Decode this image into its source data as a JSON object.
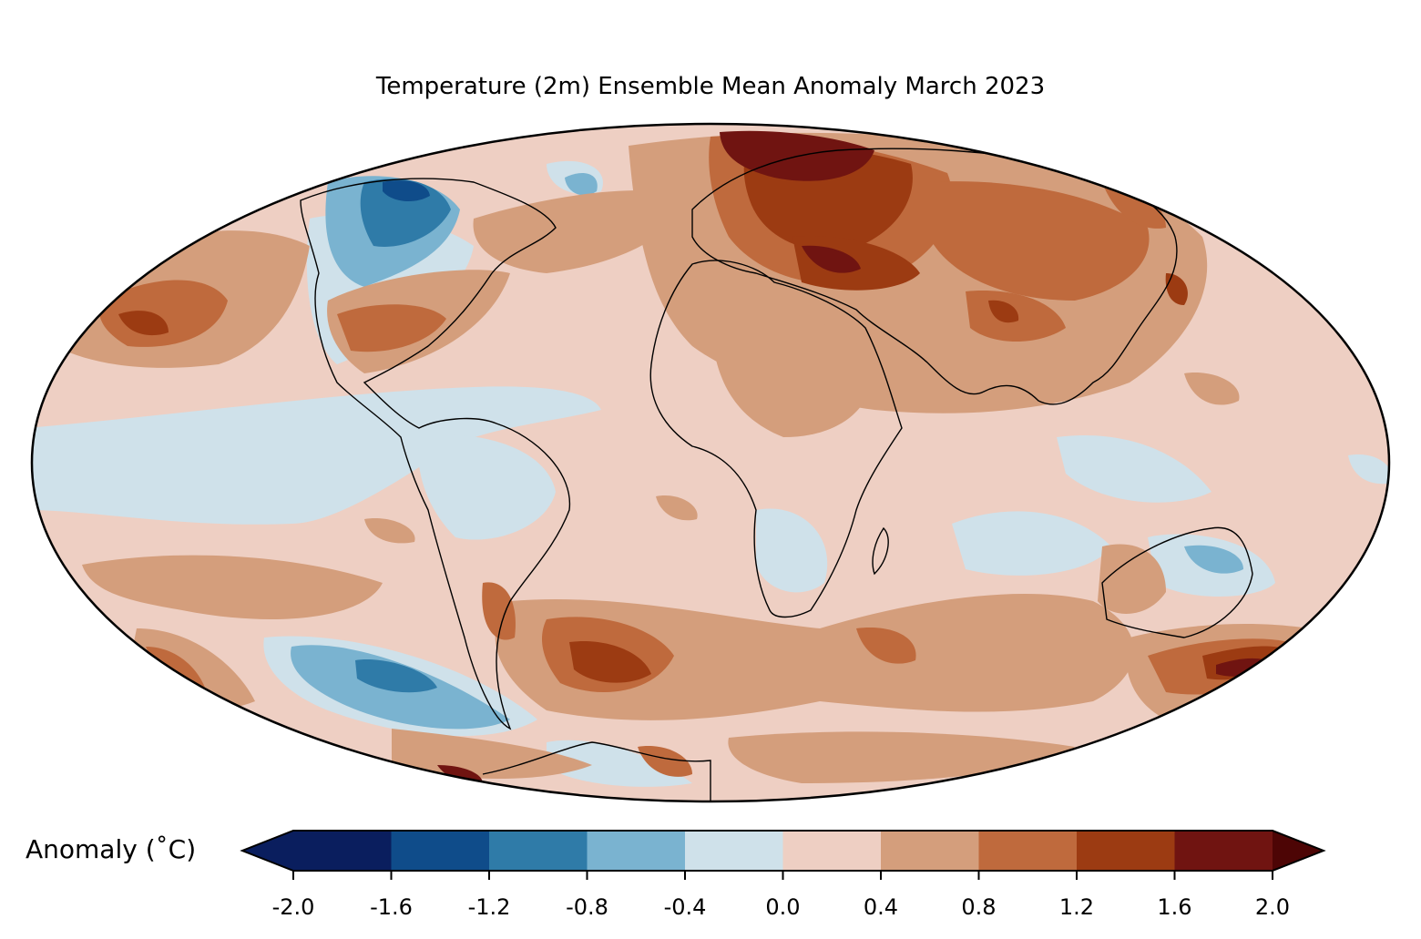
{
  "title": "Temperature (2m) Ensemble Mean Anomaly March 2023",
  "colorbar": {
    "label": "Anomaly (˚C)",
    "ticks": [
      "-2.0",
      "-1.6",
      "-1.2",
      "-0.8",
      "-0.4",
      "0.0",
      "0.4",
      "0.8",
      "1.2",
      "1.6",
      "2.0"
    ],
    "colors": [
      "#0a1e5e",
      "#0f4c8a",
      "#2f7ba8",
      "#7ab3d0",
      "#cfe1ea",
      "#eecfc3",
      "#d49e7c",
      "#bf6a3d",
      "#9c3b12",
      "#701411",
      "#4d0505"
    ]
  },
  "map": {
    "projection": "Mollweide",
    "ocean_base_color": "#eecfc3"
  }
}
